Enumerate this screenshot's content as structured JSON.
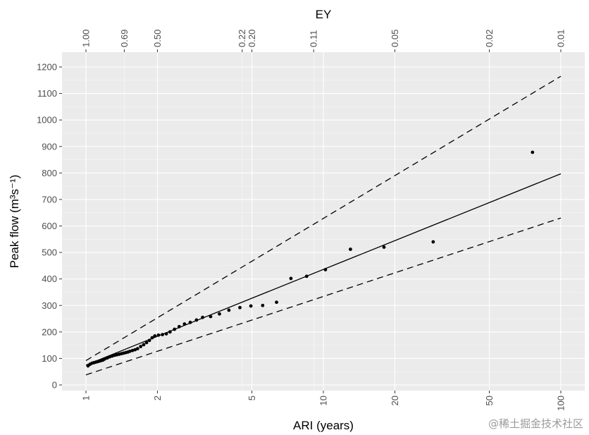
{
  "chart_data": {
    "type": "scatter",
    "x_scale": "log",
    "xlabel": "ARI (years)",
    "ylabel": "Peak flow (m³s⁻¹)",
    "top_axis_label": "EY",
    "xlim": [
      1,
      100
    ],
    "ylim": [
      0,
      1200
    ],
    "x_ticks": [
      1,
      2,
      5,
      10,
      20,
      50,
      100
    ],
    "y_ticks": [
      0,
      100,
      200,
      300,
      400,
      500,
      600,
      700,
      800,
      900,
      1000,
      1100,
      1200
    ],
    "top_ticks": [
      {
        "ari": 1.0,
        "label": "1.00"
      },
      {
        "ari": 1.45,
        "label": "0.69"
      },
      {
        "ari": 2.0,
        "label": "0.50"
      },
      {
        "ari": 4.55,
        "label": "0.22"
      },
      {
        "ari": 5.0,
        "label": "0.20"
      },
      {
        "ari": 9.1,
        "label": "0.11"
      },
      {
        "ari": 20.0,
        "label": "0.05"
      },
      {
        "ari": 50.0,
        "label": "0.02"
      },
      {
        "ari": 100.0,
        "label": "0.01"
      }
    ],
    "grid": true,
    "series": [
      {
        "kind": "points",
        "x": [
          1.02,
          1.04,
          1.06,
          1.08,
          1.1,
          1.12,
          1.14,
          1.16,
          1.18,
          1.2,
          1.23,
          1.26,
          1.29,
          1.32,
          1.35,
          1.38,
          1.41,
          1.44,
          1.47,
          1.5,
          1.53,
          1.57,
          1.61,
          1.65,
          1.7,
          1.75,
          1.8,
          1.85,
          1.9,
          1.95,
          2.02,
          2.1,
          2.18,
          2.26,
          2.36,
          2.47,
          2.6,
          2.75,
          2.92,
          3.1,
          3.35,
          3.65,
          4.0,
          4.45,
          4.95,
          5.55,
          6.35,
          7.3,
          8.5,
          10.2,
          13.0,
          18.0,
          29.0,
          76.0
        ],
        "y": [
          72,
          78,
          82,
          84,
          86,
          88,
          90,
          92,
          94,
          98,
          102,
          106,
          109,
          112,
          114,
          116,
          118,
          120,
          122,
          124,
          127,
          130,
          133,
          137,
          145,
          152,
          160,
          168,
          178,
          185,
          188,
          190,
          193,
          200,
          210,
          220,
          230,
          236,
          245,
          255,
          258,
          268,
          282,
          292,
          298,
          300,
          312,
          402,
          410,
          435,
          512,
          520,
          540,
          878
        ]
      },
      {
        "kind": "fit",
        "x": [
          1,
          100
        ],
        "y": [
          75,
          797
        ]
      },
      {
        "kind": "ci-upper",
        "x": [
          1,
          100
        ],
        "y": [
          92,
          1165
        ]
      },
      {
        "kind": "ci-lower",
        "x": [
          1,
          100
        ],
        "y": [
          38,
          630
        ]
      }
    ]
  },
  "watermark": "@稀土掘金技术社区"
}
